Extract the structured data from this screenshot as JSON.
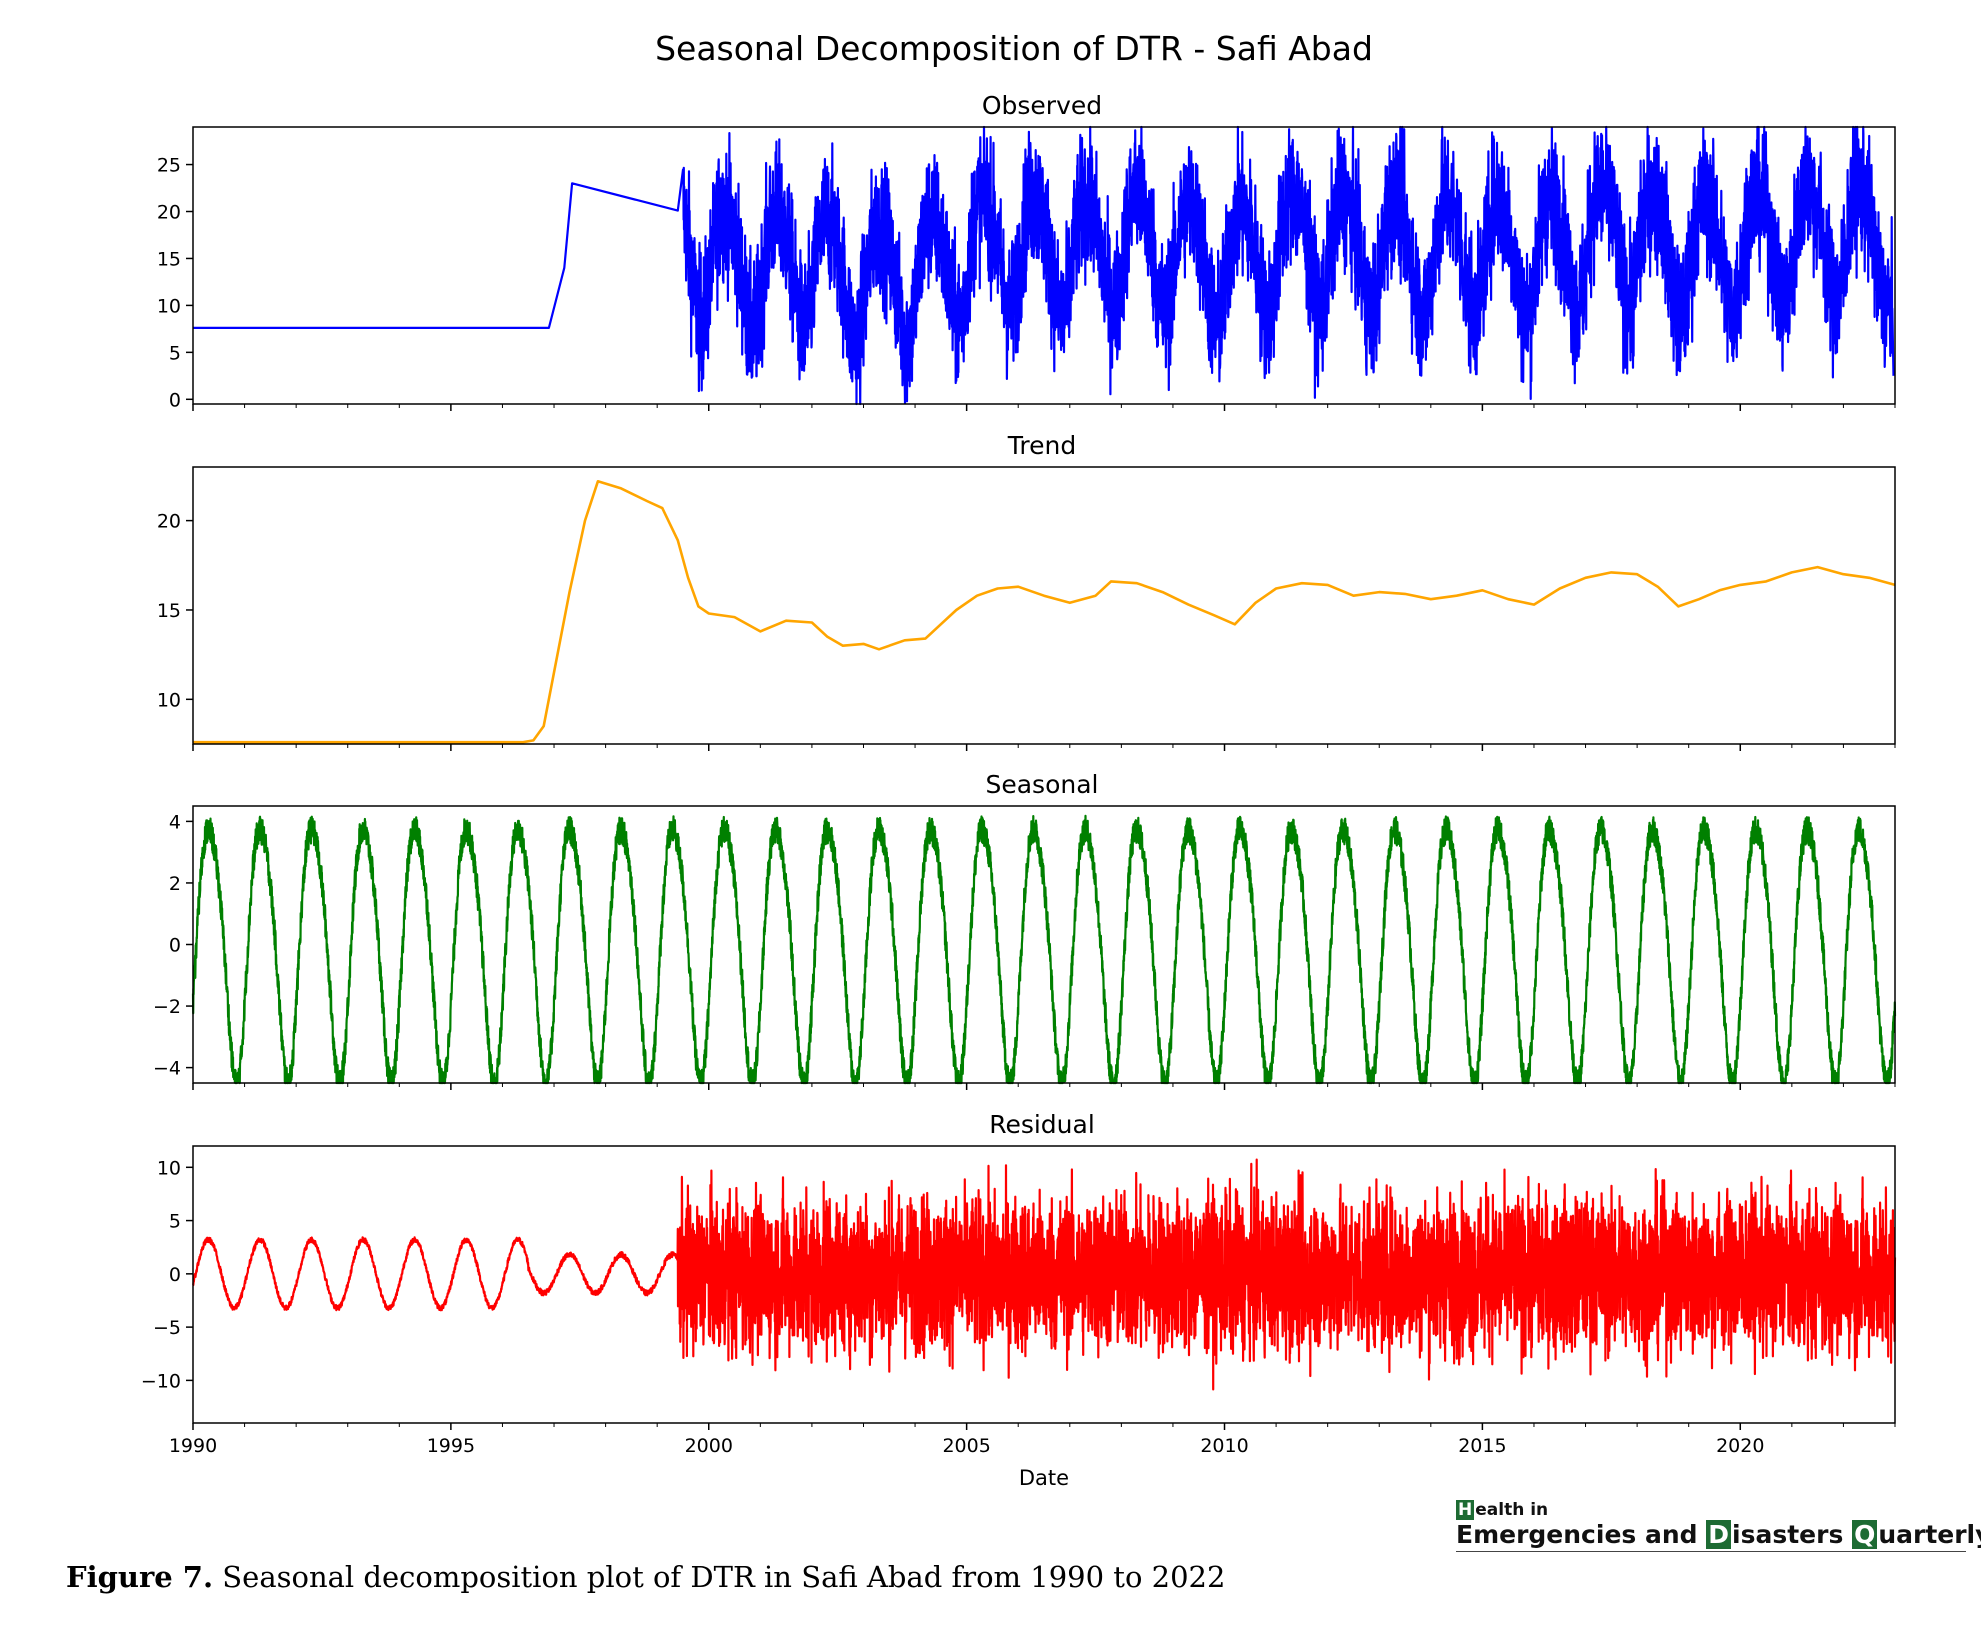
{
  "chart_data": {
    "type": "line",
    "title": "Seasonal Decomposition of DTR - Safi Abad",
    "xlabel": "Date",
    "xlim": [
      1990,
      2023
    ],
    "x_ticks": [
      "1990",
      "1995",
      "2000",
      "2005",
      "2010",
      "2015",
      "2020"
    ],
    "panels": [
      {
        "name": "Observed",
        "color": "#0000ff",
        "ylim": [
          -0.5,
          29
        ],
        "y_ticks": [
          "0",
          "5",
          "10",
          "15",
          "20",
          "25"
        ],
        "x": [
          1990,
          1996.9,
          1997.2,
          1997.35,
          1999.4,
          1999.5,
          2000,
          2001,
          2005,
          2010,
          2015,
          2020,
          2022.9
        ],
        "y": [
          7.6,
          7.6,
          14,
          23,
          20.1,
          18,
          15.3,
          13.8,
          16.0,
          15.2,
          15.8,
          16.7,
          2.5
        ],
        "note_seasonal_daily_from": 1999.5
      },
      {
        "name": "Trend",
        "color": "#ffa500",
        "ylim": [
          7.5,
          23
        ],
        "y_ticks": [
          "10",
          "15",
          "20"
        ],
        "x": [
          1990,
          1996.4,
          1996.6,
          1996.8,
          1997.0,
          1997.3,
          1997.6,
          1997.85,
          1998.3,
          1998.8,
          1999.1,
          1999.4,
          1999.6,
          1999.8,
          2000.0,
          2000.5,
          2001.0,
          2001.5,
          2002.0,
          2002.3,
          2002.6,
          2003.0,
          2003.3,
          2003.8,
          2004.2,
          2004.5,
          2004.8,
          2005.2,
          2005.6,
          2006.0,
          2006.5,
          2007.0,
          2007.5,
          2007.8,
          2008.3,
          2008.8,
          2009.3,
          2009.8,
          2010.2,
          2010.6,
          2011.0,
          2011.5,
          2012.0,
          2012.5,
          2013.0,
          2013.5,
          2014.0,
          2014.5,
          2015.0,
          2015.5,
          2016.0,
          2016.5,
          2017.0,
          2017.5,
          2018.0,
          2018.4,
          2018.8,
          2019.2,
          2019.6,
          2020.0,
          2020.5,
          2021.0,
          2021.5,
          2022.0,
          2022.5,
          2023.0
        ],
        "y": [
          7.6,
          7.6,
          7.7,
          8.5,
          11.5,
          16.0,
          20.0,
          22.2,
          21.8,
          21.1,
          20.7,
          18.9,
          16.8,
          15.2,
          14.8,
          14.6,
          13.8,
          14.4,
          14.3,
          13.5,
          13.0,
          13.1,
          12.8,
          13.3,
          13.4,
          14.2,
          15.0,
          15.8,
          16.2,
          16.3,
          15.8,
          15.4,
          15.8,
          16.6,
          16.5,
          16.0,
          15.3,
          14.7,
          14.2,
          15.4,
          16.2,
          16.5,
          16.4,
          15.8,
          16.0,
          15.9,
          15.6,
          15.8,
          16.1,
          15.6,
          15.3,
          16.2,
          16.8,
          17.1,
          17.0,
          16.3,
          15.2,
          15.6,
          16.1,
          16.4,
          16.6,
          17.1,
          17.4,
          17.0,
          16.8,
          16.4
        ]
      },
      {
        "name": "Seasonal",
        "color": "#008000",
        "ylim": [
          -4.5,
          4.5
        ],
        "y_ticks": [
          "4",
          "2",
          "0",
          "−2",
          "−4"
        ],
        "amplitude": 4.1,
        "period_years": 1,
        "cycles": 33
      },
      {
        "name": "Residual",
        "color": "#ff0000",
        "ylim": [
          -14,
          12
        ],
        "y_ticks": [
          "10",
          "5",
          "0",
          "−5",
          "−10"
        ],
        "early_cycle_amplitude": 3.5,
        "noisy_from": 1999.4,
        "noisy_range": [
          -13,
          11.2
        ]
      }
    ]
  },
  "logo": {
    "line1_box": "H",
    "line1": "ealth in",
    "line2_a": "Emergencies and ",
    "line2_box_d": "D",
    "line2_b": "isasters ",
    "line2_box_q": "Q",
    "line2_c": "uarterly"
  },
  "caption": {
    "label": "Figure 7.",
    "text": " Seasonal decomposition plot of DTR in Safi Abad from 1990 to 2022"
  }
}
